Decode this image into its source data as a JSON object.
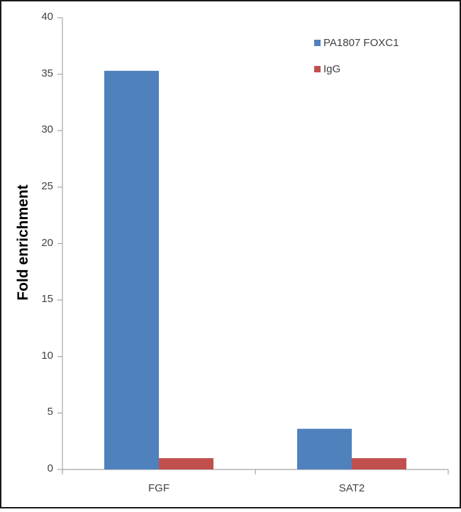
{
  "chart_data": {
    "type": "bar",
    "title": "",
    "xlabel": "",
    "ylabel": "Fold enrichment",
    "ylim": [
      0,
      40
    ],
    "yticks": [
      0,
      5,
      10,
      15,
      20,
      25,
      30,
      35,
      40
    ],
    "categories": [
      "FGF",
      "SAT2"
    ],
    "series": [
      {
        "name": "PA1807 FOXC1",
        "color": "#4f81bd",
        "values": [
          35.3,
          3.6
        ]
      },
      {
        "name": "IgG",
        "color": "#c0504d",
        "values": [
          1.0,
          1.0
        ]
      }
    ],
    "legend_position": "top-right",
    "grid": false
  }
}
